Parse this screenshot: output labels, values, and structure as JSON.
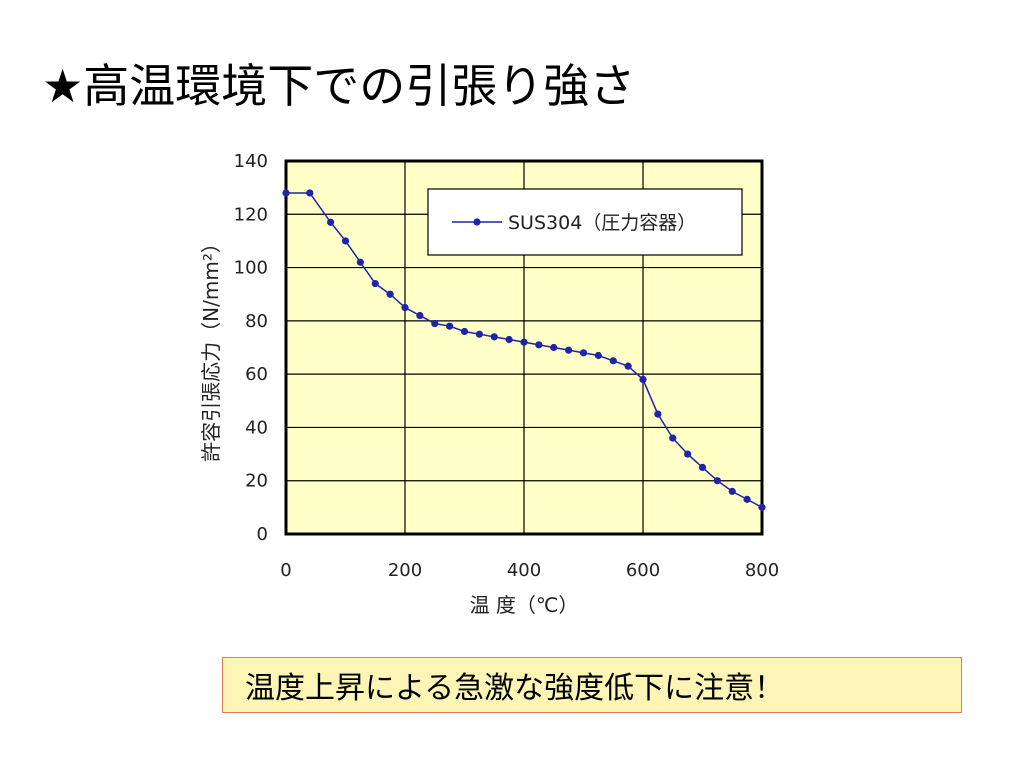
{
  "slide": {
    "title": "★高温環境下での引張り強さ",
    "note": "温度上昇による急激な強度低下に注意！"
  },
  "chart_data": {
    "type": "line",
    "xlabel": "温 度（℃）",
    "ylabel": "許容引張応力（N/mm²）",
    "xlim": [
      0,
      800
    ],
    "ylim": [
      0,
      140
    ],
    "x_ticks": [
      "0",
      "200",
      "400",
      "600",
      "800"
    ],
    "y_ticks": [
      "0",
      "20",
      "40",
      "60",
      "80",
      "100",
      "120",
      "140"
    ],
    "grid": true,
    "legend_position": "top-right",
    "plot_background": "#ffffc8",
    "series": [
      {
        "name": "SUS304（圧力容器）",
        "color": "#1f24a8",
        "x": [
          0,
          40,
          75,
          100,
          125,
          150,
          175,
          200,
          225,
          250,
          275,
          300,
          325,
          350,
          375,
          400,
          425,
          450,
          475,
          500,
          525,
          550,
          575,
          600,
          625,
          650,
          675,
          700,
          725,
          750,
          775,
          800
        ],
        "y": [
          128,
          128,
          117,
          110,
          102,
          94,
          90,
          85,
          82,
          79,
          78,
          76,
          75,
          74,
          73,
          72,
          71,
          70,
          69,
          68,
          67,
          65,
          63,
          58,
          45,
          36,
          30,
          25,
          20,
          16,
          13,
          10
        ]
      }
    ]
  }
}
